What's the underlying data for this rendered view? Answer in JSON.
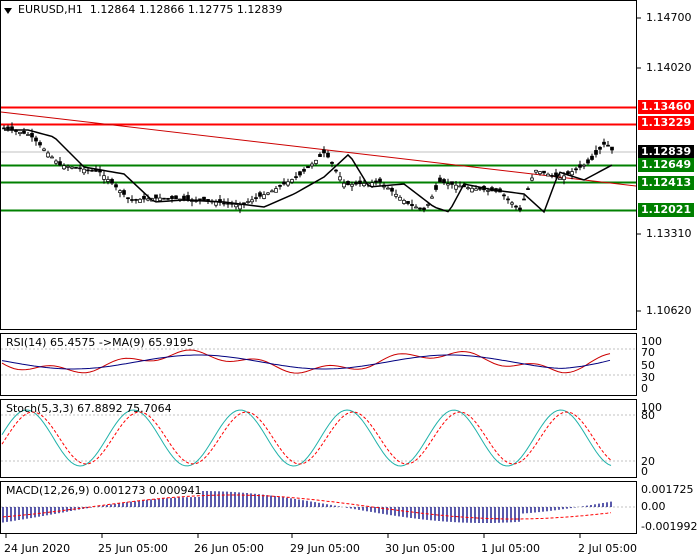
{
  "main": {
    "symbol_label": "EURUSD,H1",
    "ohlc_label": "1.12864 1.12866 1.12775 1.12839",
    "price_ticks": [
      "1.14700",
      "1.14020",
      "1.13310",
      "1.10620"
    ],
    "levels": [
      {
        "label": "1.13460",
        "value": 1.1346,
        "color": "#ff0000"
      },
      {
        "label": "1.13229",
        "value": 1.13229,
        "color": "#ff0000"
      },
      {
        "label": "1.12649",
        "value": 1.12649,
        "color": "#008000"
      },
      {
        "label": "1.12413",
        "value": 1.12413,
        "color": "#008000"
      },
      {
        "label": "1.12021",
        "value": 1.12021,
        "color": "#008000"
      }
    ],
    "current_price": {
      "label": "1.12839",
      "color": "#000000"
    }
  },
  "rsi": {
    "label": "RSI(14) 65.4575  ->MA(9) 65.9195",
    "ticks": [
      "100",
      "70",
      "50",
      "30",
      "0"
    ]
  },
  "stoch": {
    "label": "Stoch(5,3,3) 67.8892 75.7064",
    "ticks": [
      "100",
      "80",
      "20",
      "0"
    ]
  },
  "macd": {
    "label": "MACD(12,26,9) 0.001273 0.000941",
    "ticks": [
      "0.001725",
      "0.00",
      "-0.001992"
    ]
  },
  "time_axis": [
    "24 Jun 2020",
    "25 Jun 05:00",
    "26 Jun 05:00",
    "29 Jun 05:00",
    "30 Jun 05:00",
    "1 Jul 05:00",
    "2 Jul 05:00"
  ],
  "colors": {
    "bull": "#000000",
    "bear": "#000000",
    "ma": "#000000",
    "trend": "#cc0000",
    "rsi": "#cc0000",
    "rsi_ma": "#000080",
    "stoch_main": "#20b2aa",
    "stoch_signal": "#ff0000",
    "macd_hist": "#000080",
    "macd_signal": "#ff0000"
  }
}
